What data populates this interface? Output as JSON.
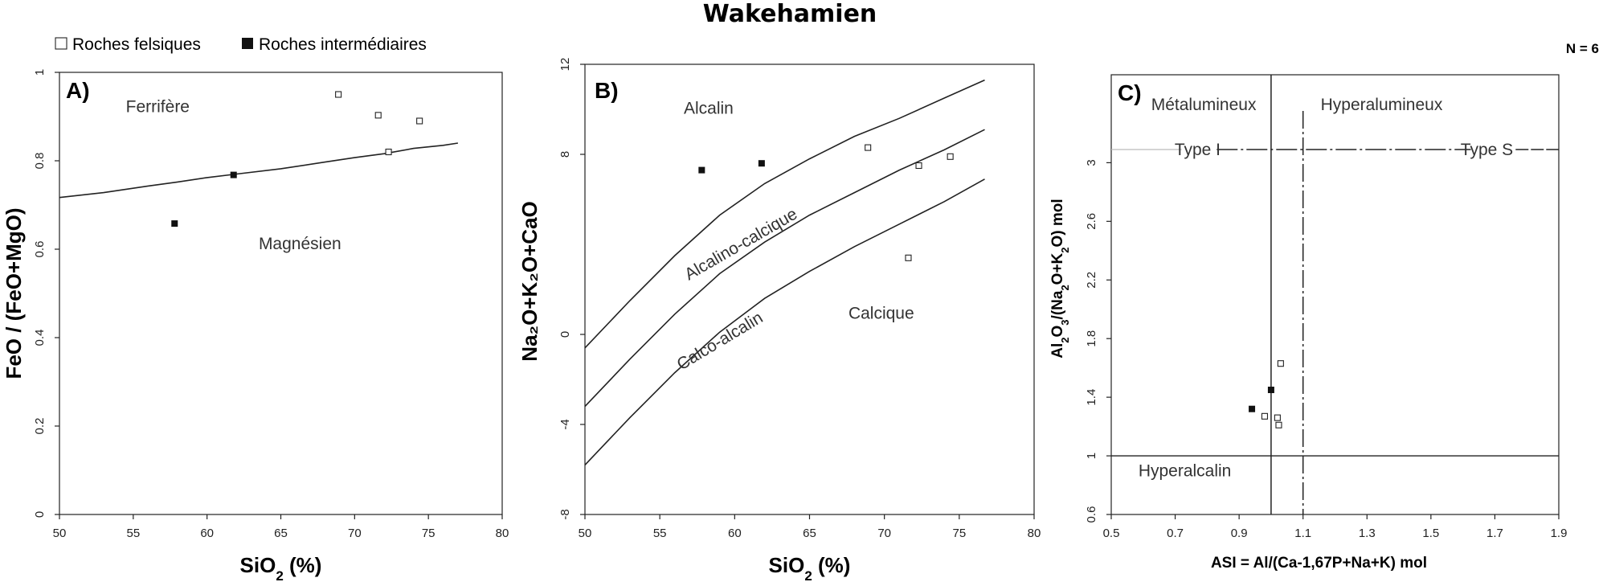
{
  "title": "Wakehamien",
  "legend": {
    "felsic_label": "Roches felsiques",
    "intermediate_label": "Roches intermédiaires"
  },
  "n_label": "N = 6",
  "colors": {
    "line": "#222222",
    "felsic_fill": "#ffffff",
    "intermediate_fill": "#111111",
    "background": "#ffffff"
  },
  "chart_data": [
    {
      "type": "scatter",
      "panel": "A)",
      "xlabel_main": "SiO",
      "xlabel_sub": "2",
      "xlabel_rest": " (%)",
      "ylabel": "FeO / (FeO+MgO)",
      "xlim": [
        50,
        80
      ],
      "ylim": [
        0,
        1
      ],
      "xticks": [
        50,
        55,
        60,
        65,
        70,
        75,
        80
      ],
      "yticks": [
        0,
        0.2,
        0.4,
        0.6,
        0.8,
        1
      ],
      "ytick_labels": [
        "0",
        "0.2",
        "0.4",
        "0.6",
        "0.8",
        "1"
      ],
      "regions": [
        {
          "label": "Ferrifère",
          "x": 54.5,
          "y": 0.91
        },
        {
          "label": "Magnésien",
          "x": 63.5,
          "y": 0.6
        }
      ],
      "boundaries": [
        {
          "points": [
            [
              50,
              0.717
            ],
            [
              53,
              0.728
            ],
            [
              56,
              0.743
            ],
            [
              58,
              0.752
            ],
            [
              60,
              0.762
            ],
            [
              62,
              0.77
            ],
            [
              65,
              0.782
            ],
            [
              68,
              0.797
            ],
            [
              70,
              0.807
            ],
            [
              72,
              0.816
            ],
            [
              74,
              0.828
            ],
            [
              76,
              0.835
            ],
            [
              77,
              0.84
            ]
          ]
        }
      ],
      "series": [
        {
          "name": "Roches felsiques",
          "points": [
            [
              68.9,
              0.95
            ],
            [
              71.6,
              0.903
            ],
            [
              74.4,
              0.89
            ],
            [
              72.3,
              0.82
            ]
          ]
        },
        {
          "name": "Roches intermédiaires",
          "points": [
            [
              57.8,
              0.658
            ],
            [
              61.8,
              0.768
            ]
          ]
        }
      ]
    },
    {
      "type": "scatter",
      "panel": "B)",
      "xlabel_main": "SiO",
      "xlabel_sub": "2",
      "xlabel_rest": " (%)",
      "ylabel": "Na₂O+K₂O+CaO",
      "xlim": [
        50,
        80
      ],
      "ylim": [
        -8,
        12
      ],
      "xticks": [
        50,
        55,
        60,
        65,
        70,
        75,
        80
      ],
      "yticks": [
        -8,
        -4,
        0,
        8,
        12
      ],
      "ytick_labels": [
        "-8",
        "-4",
        "0",
        "8",
        "12"
      ],
      "regions": [
        {
          "label": "Alcalin",
          "x": 56.6,
          "y": 9.8
        },
        {
          "label": "Calcique",
          "x": 67.6,
          "y": 0.7
        }
      ],
      "rotated_labels": [
        {
          "label": "Alcalino-calcique",
          "x": 60.6,
          "y": 3.8,
          "angle": -30
        },
        {
          "label": "Calco-alcalin",
          "x": 59.2,
          "y": -0.5,
          "angle": -31
        }
      ],
      "boundaries": [
        {
          "points": [
            [
              50,
              -0.6
            ],
            [
              53,
              1.5
            ],
            [
              56,
              3.5
            ],
            [
              59,
              5.3
            ],
            [
              62,
              6.7
            ],
            [
              65,
              7.8
            ],
            [
              68,
              8.8
            ],
            [
              71,
              9.6
            ],
            [
              74,
              10.5
            ],
            [
              76.7,
              11.3
            ]
          ]
        },
        {
          "points": [
            [
              50,
              -3.2
            ],
            [
              53,
              -1.1
            ],
            [
              56,
              0.9
            ],
            [
              59,
              2.7
            ],
            [
              62,
              4.1
            ],
            [
              65,
              5.3
            ],
            [
              68,
              6.3
            ],
            [
              71,
              7.3
            ],
            [
              74,
              8.2
            ],
            [
              76.7,
              9.1
            ]
          ]
        },
        {
          "points": [
            [
              50,
              -5.8
            ],
            [
              53,
              -3.7
            ],
            [
              56,
              -1.7
            ],
            [
              59,
              0.1
            ],
            [
              62,
              1.6
            ],
            [
              65,
              2.8
            ],
            [
              68,
              3.9
            ],
            [
              71,
              4.9
            ],
            [
              74,
              5.9
            ],
            [
              76.7,
              6.9
            ]
          ]
        }
      ],
      "series": [
        {
          "name": "Roches felsiques",
          "points": [
            [
              68.9,
              8.3
            ],
            [
              72.3,
              7.5
            ],
            [
              74.4,
              7.9
            ],
            [
              71.6,
              3.4
            ]
          ]
        },
        {
          "name": "Roches intermédiaires",
          "points": [
            [
              57.8,
              7.3
            ],
            [
              61.8,
              7.6
            ]
          ]
        }
      ]
    },
    {
      "type": "scatter",
      "panel": "C)",
      "xlabel": "ASI = Al/(Ca-1,67P+Na+K) mol",
      "ylabel_parts": [
        [
          "Al",
          ""
        ],
        [
          "2",
          "sub"
        ],
        [
          "O",
          ""
        ],
        [
          "3",
          "sub"
        ],
        [
          "/(Na",
          ""
        ],
        [
          "2",
          "sub"
        ],
        [
          "O+K",
          ""
        ],
        [
          "2",
          "sub"
        ],
        [
          "O) mol",
          ""
        ]
      ],
      "xlim": [
        0.5,
        1.9
      ],
      "ylim": [
        0.6,
        3.6
      ],
      "xticks": [
        0.5,
        0.7,
        0.9,
        1.1,
        1.3,
        1.5,
        1.7,
        1.9
      ],
      "xtick_labels": [
        "0.5",
        "0.7",
        "0.9",
        "1.1",
        "1.3",
        "1.5",
        "1.7",
        "1.9"
      ],
      "yticks": [
        0.6,
        1,
        1.4,
        1.8,
        2.2,
        2.6,
        3
      ],
      "ytick_labels": [
        "0.6",
        "1",
        "1.4",
        "1.8",
        "2.2",
        "2.6",
        "3"
      ],
      "regions": [
        {
          "label": "Métalumineux",
          "x": 0.625,
          "y": 3.36
        },
        {
          "label": "Hyperalumineux",
          "x": 1.155,
          "y": 3.36
        },
        {
          "label": "Hyperalcalin",
          "x": 0.585,
          "y": 0.86
        }
      ],
      "type_labels": [
        {
          "label": "Type I",
          "x": 0.77,
          "y": 3.09
        },
        {
          "label": "Type S",
          "x": 1.675,
          "y": 3.09
        }
      ],
      "boundaries": {
        "vertical_solid_x": 1.0,
        "vertical_dashdot_x": 1.1,
        "horizontal_y": 1.0,
        "type_line_y": 3.09
      },
      "series": [
        {
          "name": "Roches felsiques",
          "points": [
            [
              1.03,
              1.63
            ],
            [
              1.02,
              1.26
            ],
            [
              1.024,
              1.21
            ],
            [
              0.98,
              1.27
            ]
          ]
        },
        {
          "name": "Roches intermédiaires",
          "points": [
            [
              0.94,
              1.32
            ],
            [
              1.0,
              1.45
            ]
          ]
        }
      ]
    }
  ]
}
